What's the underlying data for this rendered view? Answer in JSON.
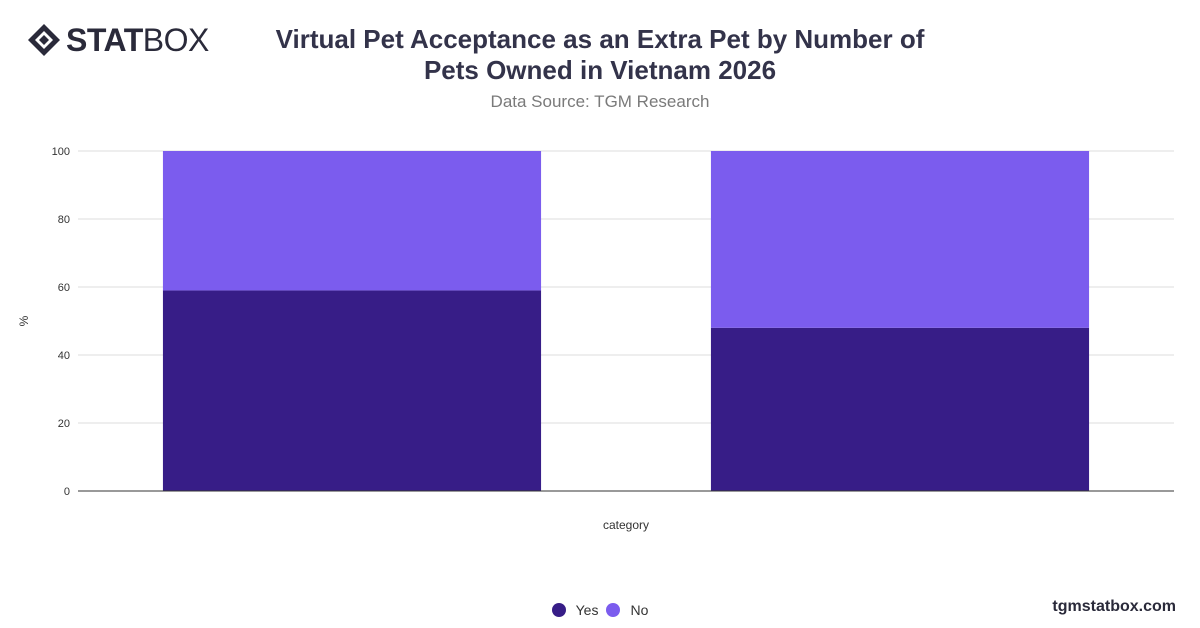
{
  "brand": {
    "logo_bold": "STAT",
    "logo_light": "BOX",
    "website": "tgmstatbox.com"
  },
  "header": {
    "title_line1": "Virtual Pet Acceptance as an Extra Pet by Number of",
    "title_line2": "Pets Owned in Vietnam 2026",
    "source": "Data Source: TGM Research"
  },
  "chart_data": {
    "type": "bar",
    "stacked": true,
    "title": "Virtual Pet Acceptance as an Extra Pet by Number of Pets Owned in Vietnam 2026",
    "xlabel": "category",
    "ylabel": "%",
    "ylim": [
      0,
      100
    ],
    "yticks": [
      0,
      20,
      40,
      60,
      80,
      100
    ],
    "categories": [
      "",
      ""
    ],
    "grid": true,
    "legend_position": "bottom",
    "series": [
      {
        "name": "Yes",
        "color": "#371d87",
        "values": [
          59,
          48
        ]
      },
      {
        "name": "No",
        "color": "#7b5cee",
        "values": [
          41,
          52
        ]
      }
    ]
  }
}
